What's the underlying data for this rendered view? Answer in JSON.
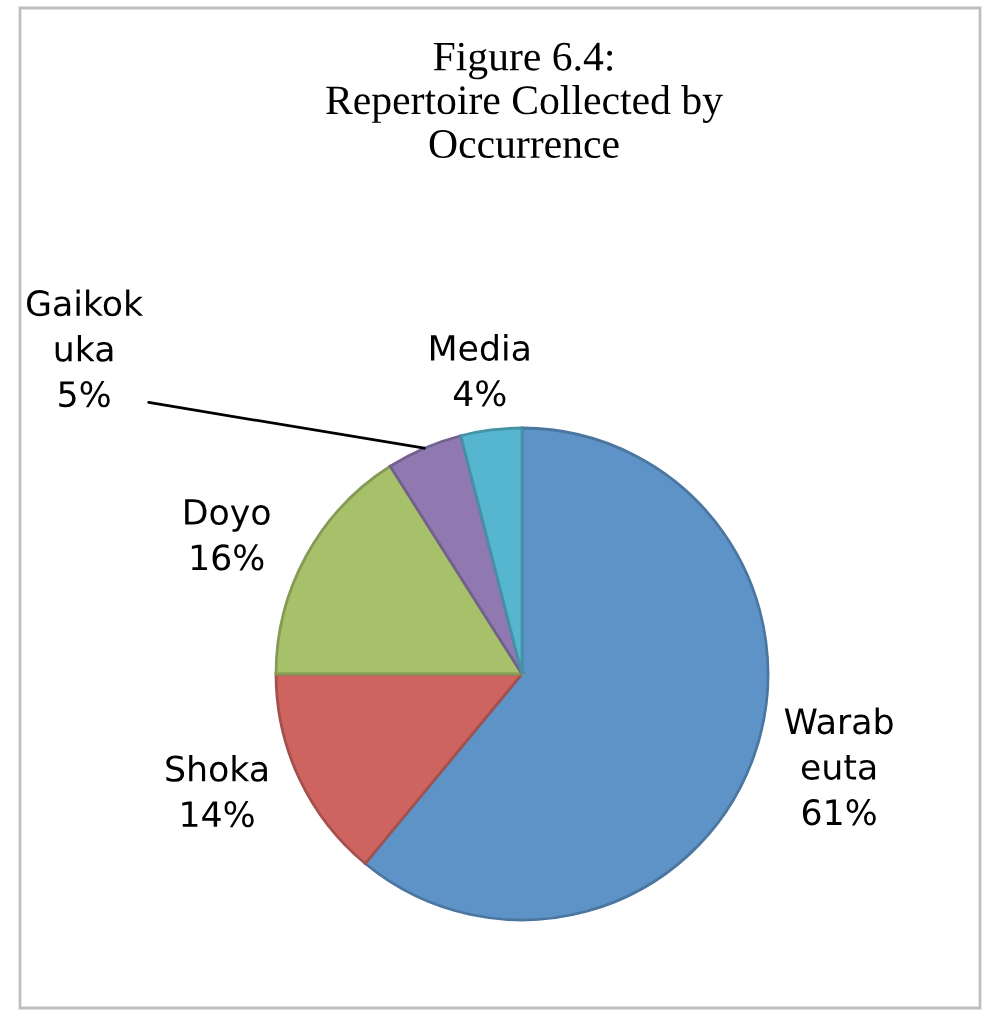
{
  "chart_data": {
    "type": "pie",
    "title": "Figure 6.4:\nRepertoire Collected by\nOccurrence",
    "categories": [
      "Warab\neuta",
      "Shoka",
      "Doyo",
      "Gaikok\nuka",
      "Media"
    ],
    "values": [
      61,
      14,
      16,
      5,
      4
    ],
    "value_labels": [
      "61%",
      "14%",
      "16%",
      "5%",
      "4%"
    ],
    "colors": [
      "#5e93c8",
      "#cd6460",
      "#a6c16a",
      "#9079b0",
      "#56b5cf"
    ]
  }
}
